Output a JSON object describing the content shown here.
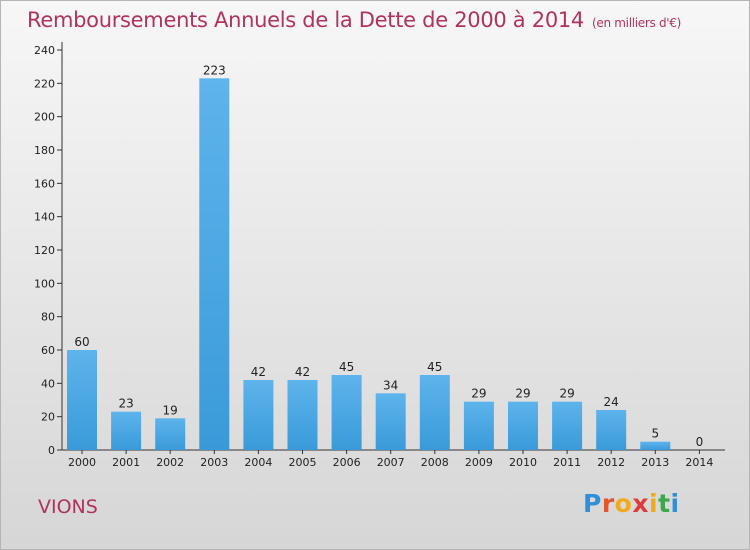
{
  "chart_data": {
    "type": "bar",
    "title": "Remboursements Annuels de la Dette de 2000 à 2014",
    "subtitle": "(en milliers d'€)",
    "categories": [
      "2000",
      "2001",
      "2002",
      "2003",
      "2004",
      "2005",
      "2006",
      "2007",
      "2008",
      "2009",
      "2010",
      "2011",
      "2012",
      "2013",
      "2014"
    ],
    "values": [
      60,
      23,
      19,
      223,
      42,
      42,
      45,
      34,
      45,
      29,
      29,
      29,
      24,
      5,
      0
    ],
    "ylim": [
      0,
      240
    ],
    "yticks": [
      0,
      20,
      40,
      60,
      80,
      100,
      120,
      140,
      160,
      180,
      200,
      220,
      240
    ],
    "grid": false,
    "bar_color": "#3a9ad9"
  },
  "commune": "VIONS",
  "logo": {
    "text": "Proxiti",
    "letter_colors": [
      "#2f8fd8",
      "#e0562b",
      "#f2a91b",
      "#e13a3a",
      "#f2a91b",
      "#3aa84b",
      "#2f8fd8"
    ]
  },
  "colors": {
    "title": "#b0325e",
    "axis": "#333333"
  }
}
